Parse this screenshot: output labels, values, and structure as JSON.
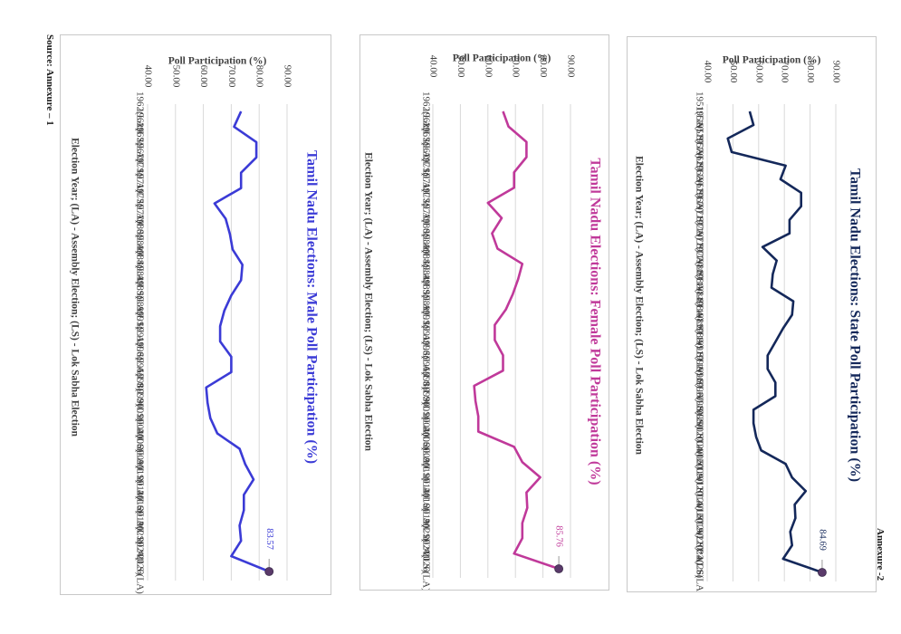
{
  "page": {
    "annexure": "Annexure -2",
    "source": "Source: Annexure – 1"
  },
  "chart_data": [
    {
      "type": "line",
      "title": "Tamil Nadu Elections: State Poll Participation (%)",
      "ylabel": "Poll Participation (%)",
      "xlabel": "Election Year; (LA) - Assembly Election; (LS) - Lok Sabha Election",
      "ylim": [
        40,
        90
      ],
      "yticks": [
        "40.00",
        "50.00",
        "60.00",
        "70.00",
        "80.00",
        "90.00"
      ],
      "color": "#14285a",
      "categories": [
        "1951(LA)",
        "1951(LS)",
        "1957(LA)",
        "1957(LS)",
        "1962(LA)",
        "1962(LS)",
        "1967(LA)",
        "1967(LS)",
        "1971(LA)",
        "1971(LS)",
        "1977(LA)",
        "1977(LS)",
        "1980(LA)",
        "1980(LS)",
        "1984(LA)",
        "1984(LS)",
        "1989(LA)",
        "1989(LS)",
        "1991(LA)",
        "1991(LS)",
        "1996(LA)",
        "1996(LS)",
        "1998(LS)",
        "1999(LS)",
        "2001(LA)",
        "2004(LS)",
        "2006(LA)",
        "2009(LS)",
        "2011(LA)",
        "2014(LS)",
        "2016(LA)",
        "2019(LS)",
        "2021(LA)",
        "2024(LS)",
        "*2026(LA)"
      ],
      "values": [
        56.5,
        58,
        48,
        49.5,
        70.5,
        68.5,
        76.5,
        76.5,
        72,
        72,
        61.5,
        67,
        65.5,
        65,
        73.5,
        73,
        69.5,
        66.5,
        63.5,
        63.5,
        66.5,
        66.5,
        58,
        58,
        59,
        61,
        70.5,
        73,
        78.3,
        74,
        74.3,
        72.3,
        73,
        69.5,
        84.69
      ],
      "highlight_label": "84.69",
      "show_grid": true
    },
    {
      "type": "line",
      "title": "Tamil Nadu Elections: Female Poll Participation (%)",
      "ylabel": "Poll Participation (%)",
      "xlabel": "Election Year; (LA) - Assembly Election; (LS) - Lok Sabha Election",
      "ylim": [
        40,
        90
      ],
      "yticks": [
        "40.00",
        "50.00",
        "60.00",
        "70.00",
        "80.00",
        "90.00"
      ],
      "color": "#c0399a",
      "categories": [
        "1962(LA)",
        "1962(LS)",
        "1967(LA)",
        "1967(LS)",
        "1971(LA)",
        "1971(LS)",
        "1977(LA)",
        "1977(LS)",
        "1980(LA)",
        "1980(LS)",
        "1984(LA)",
        "1984(LS)",
        "1989(LA)",
        "1989(LS)",
        "1991(LA)",
        "1991(LS)",
        "1996(LA)",
        "1996(LS)",
        "1998(LS)",
        "1999(LS)",
        "2001(LA)",
        "2004(LS)",
        "2006(LA)",
        "2009(LS)",
        "2011(LA)",
        "2014(LS)",
        "2016(LA)",
        "2019(LS)",
        "2021(LA)",
        "2024(LS)",
        "*2026(LA)"
      ],
      "values": [
        65.5,
        67.5,
        74,
        74,
        69.5,
        69.5,
        60,
        65,
        61.5,
        63.5,
        72.5,
        71,
        69,
        66.5,
        62.5,
        62.5,
        65.5,
        65.5,
        55,
        55.5,
        56.5,
        56.5,
        69.5,
        72.5,
        79,
        74,
        74.3,
        72.5,
        72.5,
        69.5,
        85.76
      ],
      "highlight_label": "85.76",
      "show_grid": true
    },
    {
      "type": "line",
      "title": "Tamil Nadu Elections: Male Poll Participation (%)",
      "ylabel": "Poll Participation (%)",
      "xlabel": "Election Year; (LA) - Assembly Election; (LS) - Lok Sabha Election",
      "ylim": [
        40,
        90
      ],
      "yticks": [
        "40.00",
        "50.00",
        "60.00",
        "70.00",
        "80.00",
        "90.00"
      ],
      "color": "#3b3bd6",
      "categories": [
        "1962(LA)",
        "1962(LS)",
        "1967(LA)",
        "1967(LS)",
        "1971(LA)",
        "1971(LS)",
        "1977(LA)",
        "1977(LS)",
        "1980(LA)",
        "1980(LS)",
        "1984(LA)",
        "1984(LS)",
        "1989(LA)",
        "1989(LS)",
        "1991(LA)",
        "1991(LS)",
        "1996(LA)",
        "1996(LS)",
        "1998(LS)",
        "1999(LS)",
        "2001(LA)",
        "2004(LS)",
        "2006(LA)",
        "2009(LS)",
        "2011(LA)",
        "2014(LS)",
        "2016(LA)",
        "2019(LS)",
        "2021(LA)",
        "2024(LS)",
        "*2026(LA)"
      ],
      "values": [
        73.5,
        71,
        79,
        79,
        73.5,
        73.5,
        64,
        68,
        69.5,
        70.5,
        74,
        73.5,
        70,
        67.5,
        66,
        66,
        70,
        70,
        61,
        61.5,
        62.5,
        65,
        73,
        75,
        78,
        74.5,
        74.5,
        73,
        73.5,
        70,
        83.57
      ],
      "highlight_label": "83.57",
      "show_grid": true
    }
  ]
}
